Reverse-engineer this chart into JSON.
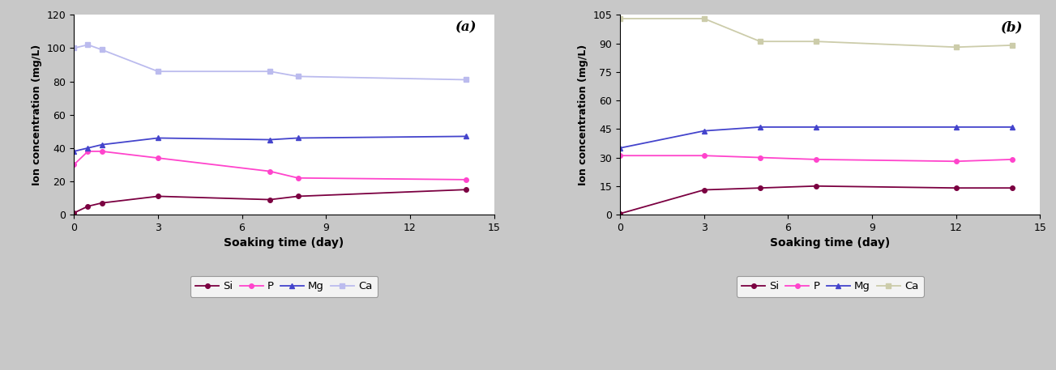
{
  "panel_a": {
    "label": "(a)",
    "x_Si": [
      0,
      0.5,
      1,
      3,
      7,
      8,
      14
    ],
    "y_Si": [
      1,
      5,
      7,
      11,
      9,
      11,
      15
    ],
    "x_P": [
      0,
      0.5,
      1,
      3,
      7,
      8,
      14
    ],
    "y_P": [
      30,
      38,
      38,
      34,
      26,
      22,
      21
    ],
    "x_Mg": [
      0,
      0.5,
      1,
      3,
      7,
      8,
      14
    ],
    "y_Mg": [
      38,
      40,
      42,
      46,
      45,
      46,
      47
    ],
    "x_Ca": [
      0,
      0.5,
      1,
      3,
      7,
      8,
      14
    ],
    "y_Ca": [
      100,
      102,
      99,
      86,
      86,
      83,
      81
    ],
    "ylim": [
      0,
      120
    ],
    "yticks": [
      0,
      20,
      40,
      60,
      80,
      100,
      120
    ],
    "xlim": [
      0,
      15
    ],
    "xticks": [
      0,
      3,
      6,
      9,
      12,
      15
    ]
  },
  "panel_b": {
    "label": "(b)",
    "x_Si": [
      0,
      3,
      5,
      7,
      12,
      14
    ],
    "y_Si": [
      0.5,
      13,
      14,
      15,
      14,
      14
    ],
    "x_P": [
      0,
      3,
      5,
      7,
      12,
      14
    ],
    "y_P": [
      31,
      31,
      30,
      29,
      28,
      29
    ],
    "x_Mg": [
      0,
      3,
      5,
      7,
      12,
      14
    ],
    "y_Mg": [
      35,
      44,
      46,
      46,
      46,
      46
    ],
    "x_Ca": [
      0,
      3,
      5,
      7,
      12,
      14
    ],
    "y_Ca": [
      103,
      103,
      91,
      91,
      88,
      89
    ],
    "ylim": [
      0,
      105
    ],
    "yticks": [
      0,
      15,
      30,
      45,
      60,
      75,
      90,
      105
    ],
    "xlim": [
      0,
      15
    ],
    "xticks": [
      0,
      3,
      6,
      9,
      12,
      15
    ]
  },
  "color_Si": "#7b0041",
  "color_P": "#ff44cc",
  "color_Mg": "#4444cc",
  "color_Ca_a": "#bbbbee",
  "color_Ca_b": "#ccccaa",
  "marker_Si": "o",
  "marker_P": "o",
  "marker_Mg": "^",
  "marker_Ca": "s",
  "ylabel": "Ion concentration (mg/L)",
  "xlabel": "Soaking time (day)",
  "legend_labels": [
    "Si",
    "P",
    "Mg",
    "Ca"
  ],
  "ax_bg": "#ffffff",
  "figure_bg": "#c8c8c8"
}
